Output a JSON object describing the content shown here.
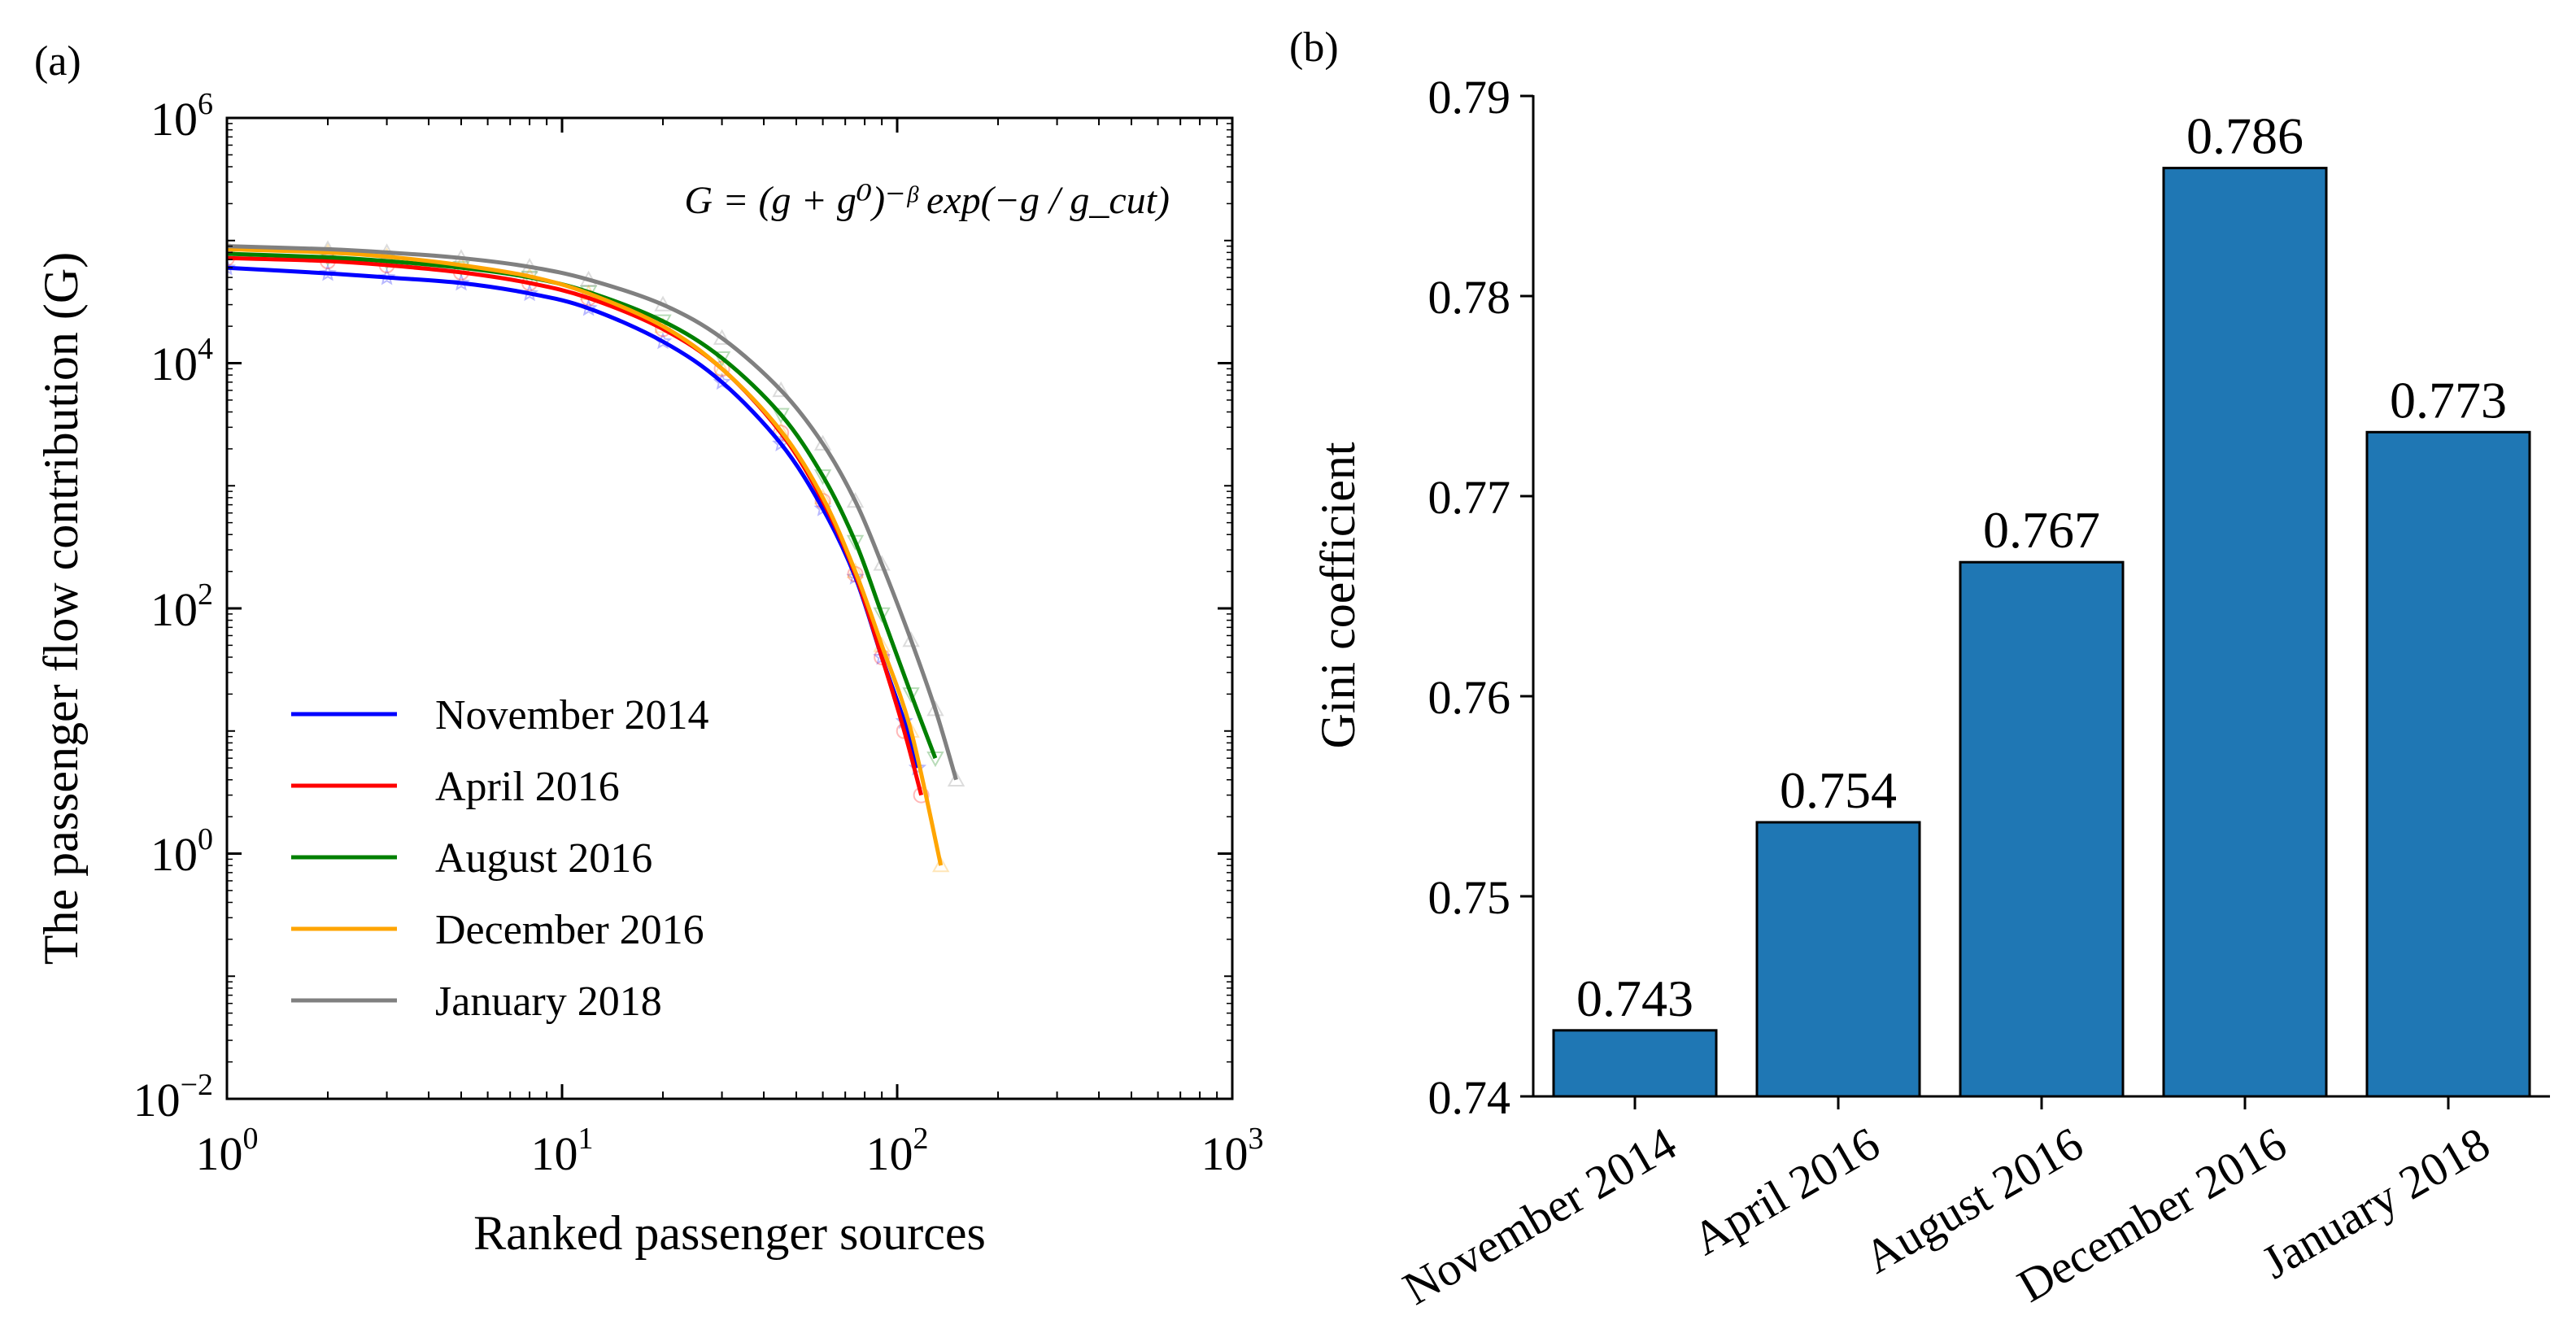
{
  "chart_data": [
    {
      "panel_label": "(a)",
      "type": "line",
      "xscale": "log",
      "yscale": "log",
      "xlim": [
        1,
        1000
      ],
      "ylim": [
        0.01,
        1000000
      ],
      "xlabel": "Ranked passenger sources",
      "ylabel": "The passenger flow contribution (G)",
      "x_tick_labels": [
        {
          "value": 1,
          "base": "10",
          "exp": "0"
        },
        {
          "value": 10,
          "base": "10",
          "exp": "1"
        },
        {
          "value": 100,
          "base": "10",
          "exp": "2"
        },
        {
          "value": 1000,
          "base": "10",
          "exp": "3"
        }
      ],
      "y_tick_labels": [
        {
          "value": 0.01,
          "base": "10",
          "exp": "−2"
        },
        {
          "value": 1,
          "base": "10",
          "exp": "0"
        },
        {
          "value": 100,
          "base": "10",
          "exp": "2"
        },
        {
          "value": 10000,
          "base": "10",
          "exp": "4"
        },
        {
          "value": 1000000,
          "base": "10",
          "exp": "6"
        }
      ],
      "annotation": "G = (g + g⁰)⁻ᵝ exp(−g / g_cut)",
      "legend": "lower-left",
      "series": [
        {
          "name": "November 2014",
          "color": "#0000ff",
          "marker": "star",
          "x": [
            1,
            2,
            3,
            5,
            8,
            12,
            20,
            30,
            45,
            60,
            75,
            90,
            105,
            115
          ],
          "y": [
            60000,
            54000,
            50000,
            45000,
            37000,
            28000,
            15000,
            7000,
            2200,
            650,
            180,
            40,
            12,
            5
          ]
        },
        {
          "name": "April 2016",
          "color": "#ff0000",
          "marker": "circle",
          "x": [
            1,
            2,
            3,
            5,
            8,
            12,
            20,
            30,
            45,
            60,
            75,
            90,
            105,
            118
          ],
          "y": [
            72000,
            68000,
            63000,
            55000,
            45000,
            34000,
            19000,
            9000,
            2700,
            750,
            190,
            40,
            10,
            3
          ]
        },
        {
          "name": "August 2016",
          "color": "#008000",
          "marker": "triangle-down",
          "x": [
            1,
            2,
            3,
            5,
            8,
            12,
            20,
            30,
            45,
            60,
            75,
            90,
            110,
            130
          ],
          "y": [
            78000,
            73000,
            68000,
            60000,
            50000,
            38000,
            22000,
            11000,
            3800,
            1200,
            350,
            90,
            20,
            6
          ]
        },
        {
          "name": "December 2016",
          "color": "#ffa500",
          "marker": "triangle-up",
          "x": [
            1,
            2,
            3,
            5,
            8,
            12,
            20,
            30,
            45,
            60,
            75,
            90,
            110,
            135
          ],
          "y": [
            85000,
            80000,
            74000,
            63000,
            51000,
            37000,
            20000,
            9000,
            2800,
            800,
            200,
            50,
            10,
            0.8
          ]
        },
        {
          "name": "January 2018",
          "color": "#808080",
          "marker": "triangle-up",
          "x": [
            1,
            2,
            3,
            5,
            8,
            12,
            20,
            30,
            45,
            60,
            75,
            90,
            110,
            130,
            150
          ],
          "y": [
            90000,
            85000,
            80000,
            72000,
            61000,
            48000,
            30000,
            16000,
            6000,
            2200,
            750,
            230,
            55,
            15,
            4
          ]
        }
      ]
    },
    {
      "panel_label": "(b)",
      "type": "bar",
      "ylabel": "Gini coefficient",
      "xlabel": "",
      "ylim": [
        0.74,
        0.79
      ],
      "y_ticks": [
        "0.74",
        "0.75",
        "0.76",
        "0.77",
        "0.78",
        "0.79"
      ],
      "bar_color": "#1f77b4",
      "categories": [
        "November 2014",
        "April 2016",
        "August 2016",
        "December 2016",
        "January 2018"
      ],
      "values": [
        0.7433,
        0.7537,
        0.7667,
        0.7864,
        0.7732
      ],
      "data_labels": [
        "0.743",
        "0.754",
        "0.767",
        "0.786",
        "0.773"
      ]
    }
  ]
}
